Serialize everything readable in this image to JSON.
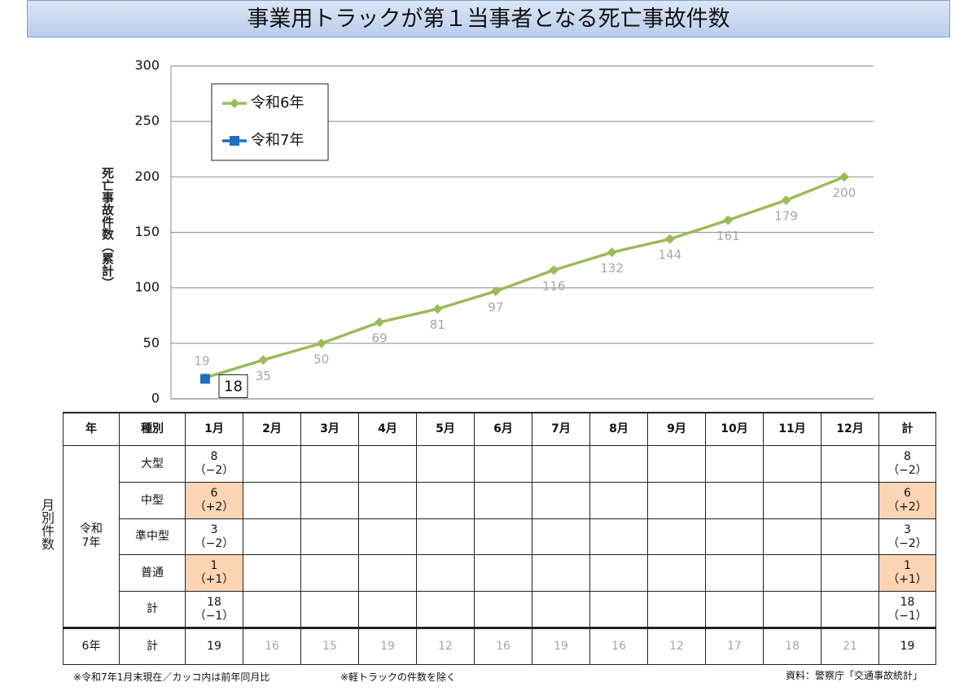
{
  "chart_data": {
    "type": "line",
    "title": "事業用トラックが第１当事者となる死亡事故件数",
    "y_label": "死亡事故件数（累計）",
    "categories": [
      null,
      null,
      null,
      null,
      null,
      null,
      null,
      null,
      null,
      null,
      null,
      null
    ],
    "series": [
      {
        "name": "令和6年",
        "color": "#9bbb59",
        "values": [
          19,
          35,
          50,
          69,
          81,
          97,
          116,
          132,
          144,
          161,
          179,
          200
        ]
      },
      {
        "name": "令和7年",
        "color": "#1f6fbf",
        "values": [
          18,
          null,
          null,
          null,
          null,
          null,
          null,
          null,
          null,
          null,
          null,
          null
        ]
      }
    ],
    "ylim": [
      0,
      300
    ],
    "yticks": [
      0,
      50,
      100,
      150,
      200,
      250,
      300
    ],
    "grid": true
  },
  "table": {
    "side_label": "月別件数",
    "header": [
      "年",
      "種別",
      "1月",
      "2月",
      "3月",
      "4月",
      "5月",
      "6月",
      "7月",
      "8月",
      "9月",
      "10月",
      "11月",
      "12月",
      "計"
    ],
    "group": "令和\n7年",
    "rows": [
      {
        "kind": "大型",
        "jan": "8\n（−2）",
        "total": "8\n（−2）"
      },
      {
        "kind": "中型",
        "jan": "6\n（+2）",
        "total": "6\n（+2）"
      },
      {
        "kind": "準中型",
        "jan": "3\n（−2）",
        "total": "3\n（−2）"
      },
      {
        "kind": "普通",
        "jan": "1\n（+1）",
        "total": "1\n（+1）"
      },
      {
        "kind": "計",
        "jan": "18\n（−1）",
        "total": "18\n（−1）"
      }
    ],
    "last_row": {
      "year": "6年",
      "kind": "計",
      "months": [
        19,
        16,
        15,
        19,
        12,
        16,
        19,
        16,
        12,
        17,
        18,
        21
      ],
      "total": 19
    }
  },
  "notes": {
    "left": "※令和7年1月末現在／カッコ内は前年同月比",
    "middle": "※軽トラックの件数を除く",
    "source": "資料：警察庁「交通事故統計」"
  }
}
